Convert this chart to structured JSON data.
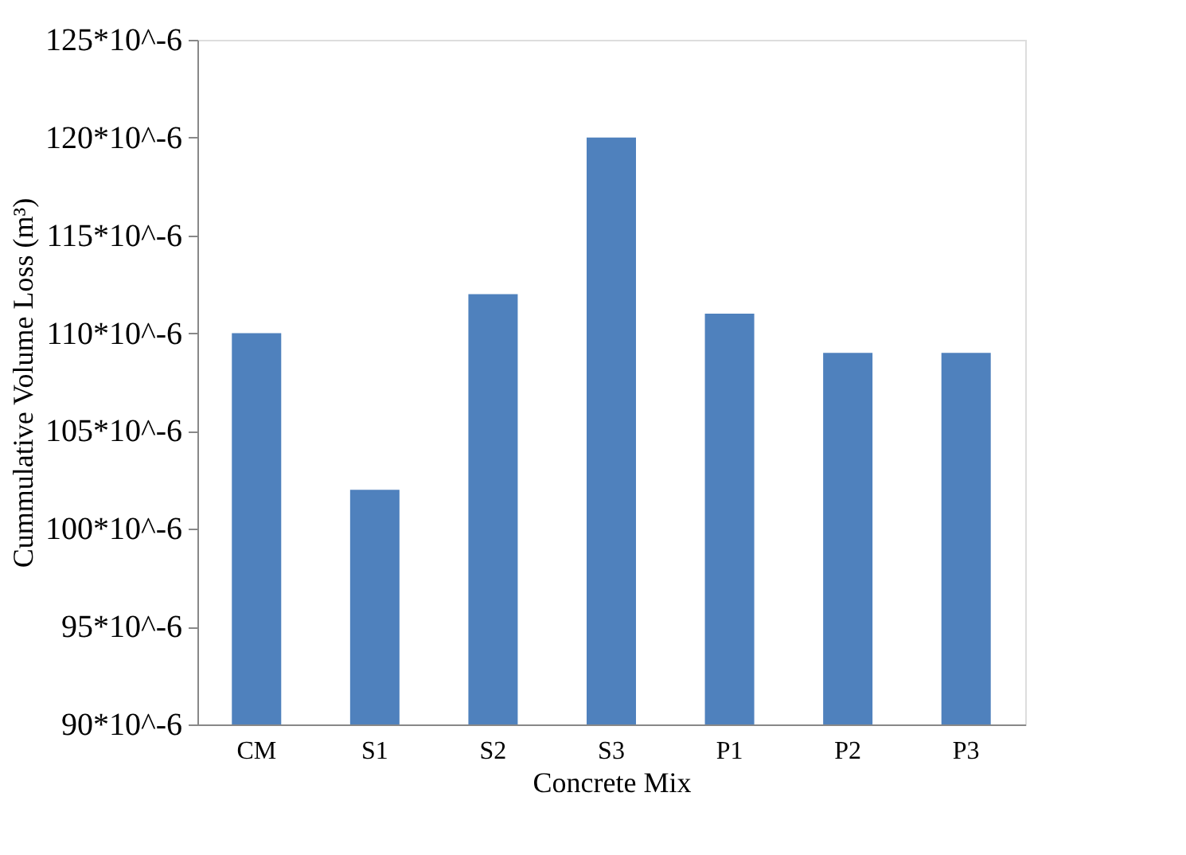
{
  "chart_data": {
    "type": "bar",
    "xlabel": "Concrete Mix",
    "ylabel": "Cummulative Volume Loss (m³)",
    "categories": [
      "CM",
      "S1",
      "S2",
      "S3",
      "P1",
      "P2",
      "P3"
    ],
    "values": [
      0.00011,
      0.000102,
      0.000112,
      0.00012,
      0.000111,
      0.000109,
      0.000109
    ],
    "color": "#4f81bd",
    "ylim": [
      9e-05,
      0.000125
    ],
    "yticks": [
      {
        "value": 9e-05,
        "label": "90*10^-6"
      },
      {
        "value": 9.5e-05,
        "label": "95*10^-6"
      },
      {
        "value": 0.0001,
        "label": "100*10^-6"
      },
      {
        "value": 0.000105,
        "label": "105*10^-6"
      },
      {
        "value": 0.00011,
        "label": "110*10^-6"
      },
      {
        "value": 0.000115,
        "label": "115*10^-6"
      },
      {
        "value": 0.00012,
        "label": "120*10^-6"
      },
      {
        "value": 0.000125,
        "label": "125*10^-6"
      }
    ],
    "grid": false
  }
}
